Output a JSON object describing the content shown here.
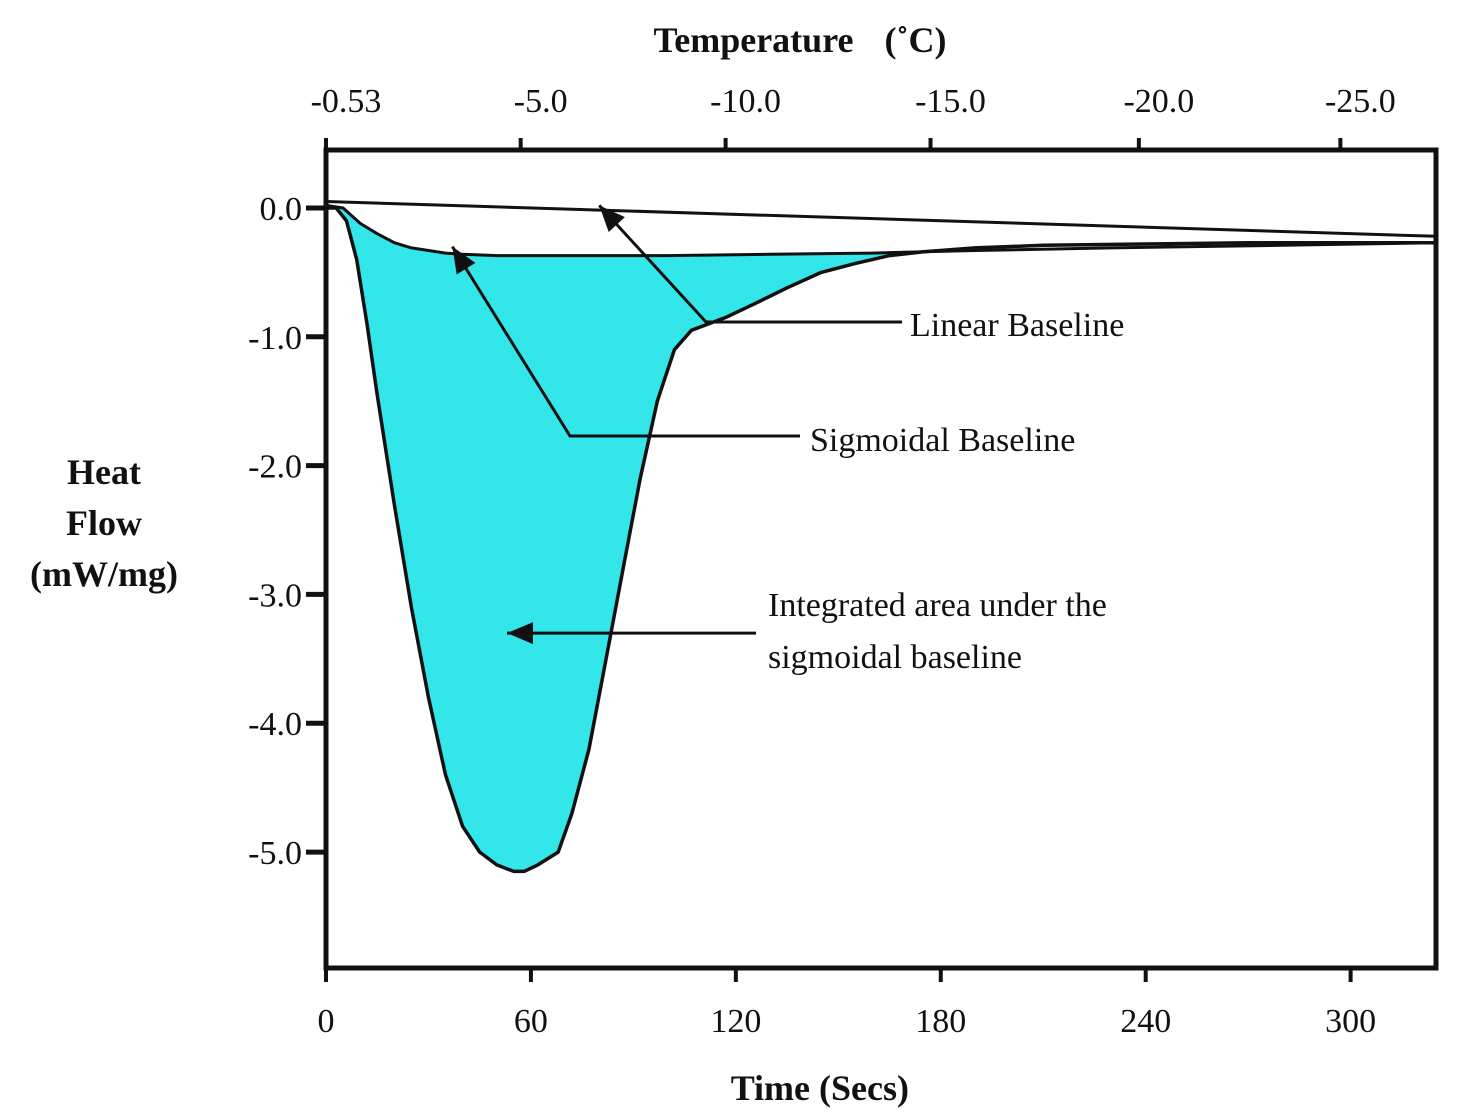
{
  "chart_data": {
    "type": "area",
    "top_axis": {
      "title": "Temperature",
      "unit_label": "(˚C)",
      "ticks": [
        {
          "label": "-0.53",
          "time": 0
        },
        {
          "label": "-5.0",
          "time": 57
        },
        {
          "label": "-10.0",
          "time": 117
        },
        {
          "label": "-15.0",
          "time": 177
        },
        {
          "label": "-20.0",
          "time": 238
        },
        {
          "label": "-25.0",
          "time": 297
        }
      ]
    },
    "x_axis": {
      "title": "Time (Secs)",
      "range": [
        0,
        325
      ],
      "ticks": [
        0,
        60,
        120,
        180,
        240,
        300
      ],
      "tick_labels": [
        "0",
        "60",
        "120",
        "180",
        "240",
        "300"
      ]
    },
    "y_axis": {
      "title_lines": [
        "Heat",
        "Flow",
        "(mW/mg)"
      ],
      "range": [
        -5.9,
        0.45
      ],
      "ticks": [
        0.0,
        -1.0,
        -2.0,
        -3.0,
        -4.0,
        -5.0
      ],
      "tick_labels": [
        "0.0",
        "-1.0",
        "-2.0",
        "-3.0",
        "-4.0",
        "-5.0"
      ]
    },
    "series": [
      {
        "key": "heat_flow",
        "x": [
          0,
          3,
          6,
          9,
          12,
          15,
          20,
          25,
          30,
          35,
          40,
          45,
          50,
          55,
          58,
          62,
          68,
          72,
          77,
          82,
          87,
          92,
          97,
          102,
          107,
          112,
          117,
          125,
          135,
          145,
          155,
          165,
          175,
          190,
          210,
          240,
          270,
          300,
          325
        ],
        "y": [
          0.0,
          0.0,
          -0.1,
          -0.4,
          -0.9,
          -1.45,
          -2.3,
          -3.1,
          -3.8,
          -4.4,
          -4.8,
          -5.0,
          -5.1,
          -5.15,
          -5.15,
          -5.1,
          -5.0,
          -4.7,
          -4.2,
          -3.5,
          -2.8,
          -2.1,
          -1.5,
          -1.1,
          -0.95,
          -0.9,
          -0.85,
          -0.75,
          -0.62,
          -0.5,
          -0.43,
          -0.37,
          -0.34,
          -0.31,
          -0.29,
          -0.28,
          -0.27,
          -0.27,
          -0.27
        ]
      },
      {
        "key": "linear_baseline",
        "x": [
          0,
          325
        ],
        "y": [
          0.05,
          -0.22
        ]
      },
      {
        "key": "sigmoidal_baseline",
        "x": [
          0,
          5,
          10,
          15,
          20,
          25,
          30,
          35,
          40,
          50,
          70,
          100,
          130,
          160,
          190,
          230,
          280,
          325
        ],
        "y": [
          0.02,
          0.0,
          -0.12,
          -0.2,
          -0.27,
          -0.31,
          -0.33,
          -0.35,
          -0.36,
          -0.37,
          -0.37,
          -0.37,
          -0.36,
          -0.35,
          -0.33,
          -0.31,
          -0.29,
          -0.27
        ]
      }
    ],
    "fill_between": {
      "upper": "sigmoidal_baseline",
      "lower": "heat_flow",
      "color": "#33e6ea"
    },
    "annotations": [
      {
        "key": "linear",
        "text": [
          "Linear Baseline"
        ],
        "arrow_to": {
          "x": 80,
          "y": 0.02
        }
      },
      {
        "key": "sigmoidal",
        "text": [
          "Sigmoidal Baseline"
        ],
        "arrow_to": {
          "x": 37,
          "y": -0.3
        }
      },
      {
        "key": "area",
        "text": [
          "Integrated area under the",
          "sigmoidal baseline"
        ],
        "arrow_to": {
          "x": 53,
          "y": -3.3
        }
      }
    ],
    "colors": {
      "fill": "#33e6ea",
      "line": "#111111"
    },
    "grid": false
  }
}
